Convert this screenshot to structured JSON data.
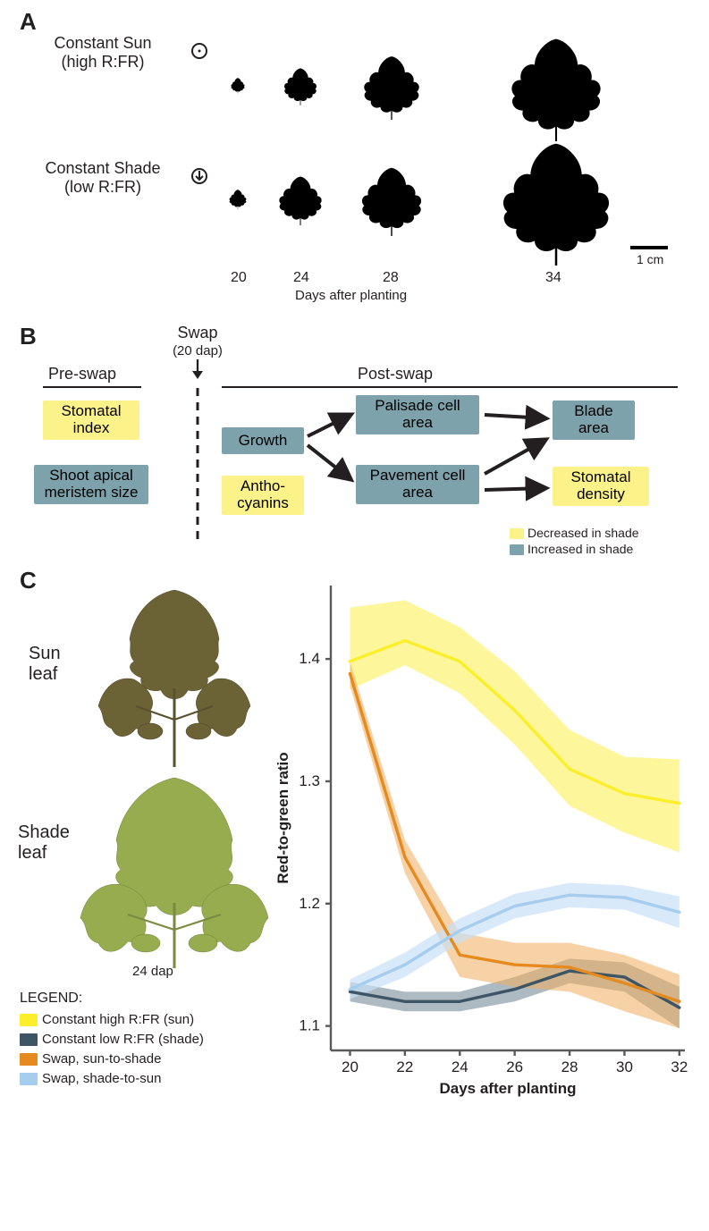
{
  "panelA": {
    "label": "A",
    "row_labels": [
      "Constant Sun\n(high R:FR)",
      "Constant Shade\n(low R:FR)"
    ],
    "row_label_fontsize": 18,
    "x_ticks": [
      20,
      24,
      28,
      34
    ],
    "x_title": "Days after planting",
    "scale_label": "1 cm",
    "sun_icon": "sun",
    "shade_icon": "shade",
    "silhouette_scale_sun": [
      0.16,
      0.38,
      0.65,
      1.05
    ],
    "silhouette_scale_shade": [
      0.2,
      0.5,
      0.7,
      1.25
    ]
  },
  "panelB": {
    "label": "B",
    "headers": {
      "pre": "Pre-swap",
      "post": "Post-swap",
      "swap": "Swap",
      "swap_sub": "(20 dap)"
    },
    "boxes": [
      {
        "id": "stom-index",
        "text": "Stomatal\nindex",
        "color": "yellow",
        "side": "pre"
      },
      {
        "id": "sam-size",
        "text": "Shoot apical\nmeristem size",
        "color": "blue",
        "side": "pre"
      },
      {
        "id": "growth",
        "text": "Growth",
        "color": "blue",
        "side": "post"
      },
      {
        "id": "antho",
        "text": "Antho-\ncyanins",
        "color": "yellow",
        "side": "post"
      },
      {
        "id": "palisade",
        "text": "Palisade cell\narea",
        "color": "blue",
        "side": "post"
      },
      {
        "id": "pavement",
        "text": "Pavement cell\narea",
        "color": "blue",
        "side": "post"
      },
      {
        "id": "blade",
        "text": "Blade\narea",
        "color": "blue",
        "side": "post"
      },
      {
        "id": "stom-dens",
        "text": "Stomatal\ndensity",
        "color": "yellow",
        "side": "post"
      }
    ],
    "legend": [
      {
        "color": "#fcf28a",
        "label": "Decreased in shade"
      },
      {
        "color": "#7ea2ab",
        "label": "Increased in shade"
      }
    ],
    "arrows": [
      [
        "growth",
        "palisade"
      ],
      [
        "growth",
        "pavement"
      ],
      [
        "palisade",
        "blade"
      ],
      [
        "pavement",
        "blade"
      ],
      [
        "pavement",
        "stom-dens"
      ]
    ]
  },
  "panelC": {
    "label": "C",
    "leaf_labels": {
      "sun": "Sun\nleaf",
      "shade": "Shade\nleaf",
      "dap": "24 dap"
    },
    "legend_title": "LEGEND:",
    "legend": [
      {
        "color": "#fbee2a",
        "label": "Constant high R:FR (sun)"
      },
      {
        "color": "#3e5566",
        "label": "Constant low R:FR (shade)"
      },
      {
        "color": "#e58a1f",
        "label": "Swap, sun-to-shade"
      },
      {
        "color": "#a6cdee",
        "label": "Swap, shade-to-sun"
      }
    ],
    "chart": {
      "type": "line-with-band",
      "x_title": "Days after planting",
      "y_title": "Red-to-green ratio",
      "title_fontsize": 17,
      "label_fontsize": 17,
      "x_ticks": [
        20,
        22,
        24,
        26,
        28,
        30,
        32
      ],
      "y_ticks": [
        1.1,
        1.2,
        1.3,
        1.4
      ],
      "xlim": [
        19.3,
        32.2
      ],
      "ylim": [
        1.08,
        1.46
      ],
      "axis_color": "#5a5a5a",
      "axis_width": 2.4,
      "grid": false,
      "background": "#ffffff",
      "series": [
        {
          "id": "sun",
          "color": "#fbee2a",
          "band_color": "#fdf37a",
          "band_opacity": 0.75,
          "x": [
            20,
            22,
            24,
            26,
            28,
            30,
            32
          ],
          "y": [
            1.398,
            1.415,
            1.398,
            1.358,
            1.31,
            1.29,
            1.282
          ],
          "lo": [
            1.375,
            1.395,
            1.372,
            1.33,
            1.28,
            1.258,
            1.242
          ],
          "hi": [
            1.442,
            1.448,
            1.426,
            1.39,
            1.342,
            1.32,
            1.318
          ]
        },
        {
          "id": "shade",
          "color": "#3e5566",
          "band_color": "#6b8190",
          "band_opacity": 0.55,
          "x": [
            20,
            22,
            24,
            26,
            28,
            30,
            32
          ],
          "y": [
            1.128,
            1.12,
            1.12,
            1.13,
            1.145,
            1.14,
            1.115
          ],
          "lo": [
            1.12,
            1.112,
            1.112,
            1.12,
            1.135,
            1.128,
            1.098
          ],
          "hi": [
            1.136,
            1.128,
            1.128,
            1.14,
            1.155,
            1.152,
            1.132
          ]
        },
        {
          "id": "sun2shade",
          "color": "#e58a1f",
          "band_color": "#f0ad5c",
          "band_opacity": 0.55,
          "x": [
            20,
            22,
            24,
            26,
            28,
            30,
            32
          ],
          "y": [
            1.388,
            1.238,
            1.158,
            1.15,
            1.148,
            1.135,
            1.12
          ],
          "lo": [
            1.378,
            1.225,
            1.14,
            1.132,
            1.128,
            1.112,
            1.098
          ],
          "hi": [
            1.398,
            1.252,
            1.176,
            1.168,
            1.168,
            1.158,
            1.142
          ]
        },
        {
          "id": "shade2sun",
          "color": "#a6cdee",
          "band_color": "#c7e0f6",
          "band_opacity": 0.7,
          "x": [
            20,
            22,
            24,
            26,
            28,
            30,
            32
          ],
          "y": [
            1.13,
            1.15,
            1.178,
            1.198,
            1.207,
            1.205,
            1.193
          ],
          "lo": [
            1.122,
            1.14,
            1.168,
            1.188,
            1.197,
            1.195,
            1.18
          ],
          "hi": [
            1.138,
            1.16,
            1.188,
            1.208,
            1.217,
            1.215,
            1.206
          ]
        }
      ],
      "line_width": 3.4
    }
  }
}
